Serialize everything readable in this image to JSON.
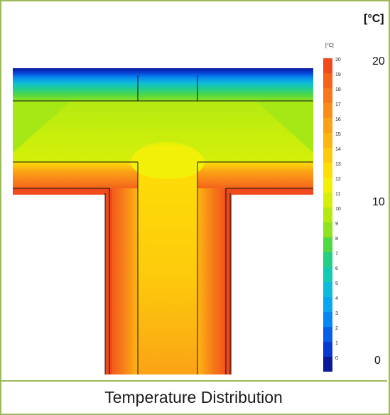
{
  "figure": {
    "unit_label": "[°C]",
    "axis_top": "20",
    "axis_mid": "10",
    "axis_bottom": "0",
    "caption": "Temperature Distribution",
    "frame_color": "#9bbb59"
  },
  "legend": {
    "unit": "[°C]",
    "ticks": [
      "20",
      "19",
      "18",
      "17",
      "16",
      "15",
      "14",
      "13",
      "12",
      "11",
      "10",
      "9",
      "8",
      "7",
      "6",
      "5",
      "4",
      "3",
      "2",
      "1",
      "0"
    ],
    "colors": [
      "#f04a1c",
      "#f5631a",
      "#f7771a",
      "#f98d18",
      "#fba215",
      "#fcb511",
      "#fdc90c",
      "#fede07",
      "#f2f008",
      "#d4ef0a",
      "#b4ea12",
      "#8fe31e",
      "#51d844",
      "#25cf86",
      "#12cbb3",
      "#0ebcd9",
      "#0aa6ee",
      "#0787f1",
      "#0560e9",
      "#063ad0",
      "#0a1a9a"
    ]
  }
}
